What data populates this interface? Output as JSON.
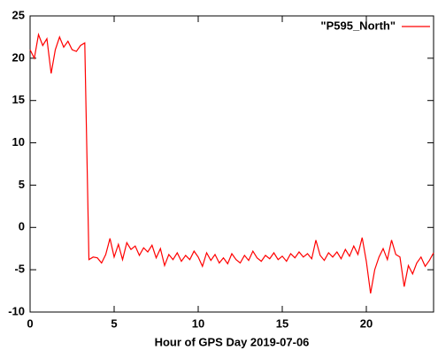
{
  "chart_data": {
    "type": "line",
    "xlabel": "Hour of GPS Day 2019-07-06",
    "xlim": [
      0,
      24
    ],
    "xticks": [
      0,
      5,
      10,
      15,
      20
    ],
    "ylim": [
      -10,
      25
    ],
    "yticks": [
      -10,
      -5,
      0,
      5,
      10,
      15,
      20,
      25
    ],
    "legend": "top-right",
    "x": [
      0,
      0.25,
      0.5,
      0.75,
      1,
      1.25,
      1.5,
      1.75,
      2,
      2.25,
      2.5,
      2.75,
      3,
      3.25,
      3.5,
      3.75,
      4,
      4.25,
      4.5,
      4.75,
      5,
      5.25,
      5.5,
      5.75,
      6,
      6.25,
      6.5,
      6.75,
      7,
      7.25,
      7.5,
      7.75,
      8,
      8.25,
      8.5,
      8.75,
      9,
      9.25,
      9.5,
      9.75,
      10,
      10.25,
      10.5,
      10.75,
      11,
      11.25,
      11.5,
      11.75,
      12,
      12.25,
      12.5,
      12.75,
      13,
      13.25,
      13.5,
      13.75,
      14,
      14.25,
      14.5,
      14.75,
      15,
      15.25,
      15.5,
      15.75,
      16,
      16.25,
      16.5,
      16.75,
      17,
      17.25,
      17.5,
      17.75,
      18,
      18.25,
      18.5,
      18.75,
      19,
      19.25,
      19.5,
      19.75,
      20,
      20.25,
      20.5,
      20.75,
      21,
      21.25,
      21.5,
      21.75,
      22,
      22.25,
      22.5,
      22.75,
      23,
      23.25,
      23.5,
      23.75,
      24
    ],
    "series": [
      {
        "name": "\"P595_North\"",
        "color": "#ff0000",
        "values": [
          21,
          20,
          22.8,
          21.5,
          22.3,
          18.2,
          21,
          22.5,
          21.3,
          22,
          21,
          20.8,
          21.5,
          21.8,
          -3.8,
          -3.5,
          -3.6,
          -4.2,
          -3.2,
          -1.3,
          -3.5,
          -2,
          -3.8,
          -1.8,
          -2.6,
          -2.2,
          -3.3,
          -2.4,
          -2.9,
          -2.1,
          -3.6,
          -2.5,
          -4.5,
          -3.2,
          -3.8,
          -3,
          -4,
          -3.3,
          -3.8,
          -2.8,
          -3.5,
          -4.6,
          -3,
          -3.9,
          -3.2,
          -4.2,
          -3.6,
          -4.3,
          -3.1,
          -3.8,
          -4.2,
          -3.3,
          -3.9,
          -2.8,
          -3.6,
          -4,
          -3.3,
          -3.7,
          -3,
          -3.8,
          -3.4,
          -4,
          -3.1,
          -3.6,
          -2.9,
          -3.5,
          -3.1,
          -3.7,
          -1.5,
          -3.3,
          -3.9,
          -3,
          -3.5,
          -2.9,
          -3.7,
          -2.6,
          -3.4,
          -2.2,
          -3.2,
          -1.2,
          -4,
          -7.8,
          -5,
          -3.5,
          -2.5,
          -3.8,
          -1.5,
          -3.2,
          -3.5,
          -7,
          -4.5,
          -5.5,
          -4.2,
          -3.5,
          -4.6,
          -3.9,
          -3
        ]
      }
    ]
  }
}
